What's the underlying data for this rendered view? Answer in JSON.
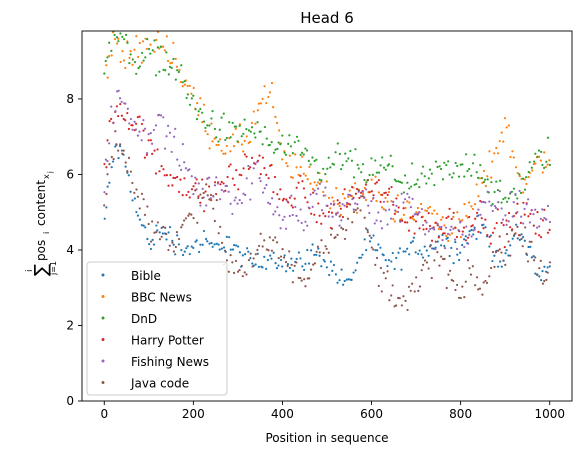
{
  "chart_data": {
    "type": "scatter",
    "title": "Head 6",
    "xlabel": "Position in sequence",
    "ylabel_parts": {
      "sum_top": "i",
      "sum_bottom": "j=1",
      "main": "pos",
      "sub_i": "i",
      "mid": "content",
      "sub_x": "x",
      "sub_j": "j"
    },
    "xlim": [
      -50,
      1050
    ],
    "ylim": [
      0,
      9.8
    ],
    "xticks": [
      0,
      200,
      400,
      600,
      800,
      1000
    ],
    "yticks": [
      0,
      2,
      4,
      6,
      8
    ],
    "grid": false,
    "legend_position": "lower-left",
    "point_step": 4,
    "series": [
      {
        "name": "Bible",
        "color": "#1f77b4",
        "x": [
          0,
          25,
          50,
          75,
          100,
          125,
          150,
          175,
          200,
          225,
          250,
          275,
          300,
          325,
          350,
          375,
          400,
          425,
          450,
          475,
          500,
          525,
          550,
          575,
          600,
          625,
          650,
          675,
          700,
          725,
          750,
          775,
          800,
          825,
          850,
          875,
          900,
          925,
          950,
          975,
          1000
        ],
        "y": [
          4.8,
          6.8,
          6.2,
          4.9,
          4.2,
          4.5,
          4.4,
          4.0,
          4.1,
          4.2,
          4.0,
          4.3,
          3.9,
          3.7,
          3.6,
          3.9,
          3.7,
          3.6,
          3.8,
          3.9,
          3.7,
          3.3,
          3.1,
          3.9,
          4.2,
          3.8,
          3.6,
          3.9,
          4.1,
          4.0,
          4.3,
          4.1,
          4.0,
          4.5,
          4.6,
          4.0,
          3.6,
          4.5,
          4.2,
          3.3,
          3.5
        ],
        "spread": 0.22
      },
      {
        "name": "BBC News",
        "color": "#ff7f0e",
        "x": [
          0,
          25,
          50,
          75,
          100,
          125,
          150,
          175,
          200,
          225,
          250,
          275,
          300,
          325,
          350,
          375,
          400,
          425,
          450,
          475,
          500,
          525,
          550,
          575,
          600,
          625,
          650,
          675,
          700,
          725,
          750,
          775,
          800,
          825,
          850,
          875,
          900,
          925,
          950,
          975,
          1000
        ],
        "y": [
          8.6,
          9.6,
          9.2,
          9.1,
          9.6,
          9.5,
          9.3,
          8.6,
          8.0,
          7.4,
          7.0,
          6.7,
          6.8,
          7.0,
          7.9,
          8.1,
          6.4,
          6.2,
          6.0,
          5.9,
          5.5,
          5.3,
          5.5,
          5.4,
          5.6,
          5.3,
          5.2,
          5.0,
          4.9,
          5.1,
          4.8,
          4.6,
          4.7,
          5.1,
          5.8,
          6.5,
          7.3,
          6.2,
          5.8,
          6.3,
          6.5
        ],
        "spread": 0.3
      },
      {
        "name": "DnD",
        "color": "#2ca02c",
        "x": [
          0,
          25,
          50,
          75,
          100,
          125,
          150,
          175,
          200,
          225,
          250,
          275,
          300,
          325,
          350,
          375,
          400,
          425,
          450,
          475,
          500,
          525,
          550,
          575,
          600,
          625,
          650,
          675,
          700,
          725,
          750,
          775,
          800,
          825,
          850,
          875,
          900,
          925,
          950,
          975,
          1000
        ],
        "y": [
          8.9,
          9.7,
          9.4,
          9.0,
          9.2,
          9.1,
          8.9,
          8.5,
          7.8,
          7.4,
          7.3,
          7.1,
          7.0,
          7.3,
          7.0,
          6.8,
          6.7,
          6.6,
          6.4,
          6.2,
          6.0,
          6.5,
          6.3,
          6.1,
          6.0,
          6.2,
          6.0,
          5.9,
          5.7,
          5.8,
          6.1,
          6.0,
          6.2,
          6.3,
          6.1,
          5.5,
          5.3,
          5.5,
          6.0,
          6.4,
          6.6
        ],
        "spread": 0.3
      },
      {
        "name": "Harry Potter",
        "color": "#d62728",
        "x": [
          0,
          25,
          50,
          75,
          100,
          125,
          150,
          175,
          200,
          225,
          250,
          275,
          300,
          325,
          350,
          375,
          400,
          425,
          450,
          475,
          500,
          525,
          550,
          575,
          600,
          625,
          650,
          675,
          700,
          725,
          750,
          775,
          800,
          825,
          850,
          875,
          900,
          925,
          950,
          975,
          1000
        ],
        "y": [
          6.2,
          7.9,
          7.5,
          7.4,
          6.6,
          6.2,
          6.0,
          5.8,
          5.6,
          5.4,
          5.6,
          5.9,
          6.0,
          6.3,
          6.4,
          5.9,
          5.2,
          5.6,
          5.5,
          5.0,
          4.9,
          5.1,
          5.4,
          5.6,
          5.5,
          5.7,
          5.2,
          4.9,
          4.8,
          4.7,
          4.5,
          4.9,
          4.6,
          4.8,
          4.9,
          4.6,
          4.5,
          4.8,
          5.0,
          4.6,
          4.7
        ],
        "spread": 0.3
      },
      {
        "name": "Fishing News",
        "color": "#9467bd",
        "x": [
          0,
          25,
          50,
          75,
          100,
          125,
          150,
          175,
          200,
          225,
          250,
          275,
          300,
          325,
          350,
          375,
          400,
          425,
          450,
          475,
          500,
          525,
          550,
          575,
          600,
          625,
          650,
          675,
          700,
          725,
          750,
          775,
          800,
          825,
          850,
          875,
          900,
          925,
          950,
          975,
          1000
        ],
        "y": [
          5.9,
          8.1,
          7.6,
          7.2,
          7.0,
          7.5,
          6.8,
          6.3,
          5.8,
          5.4,
          5.8,
          5.6,
          5.3,
          5.8,
          6.0,
          5.4,
          4.8,
          5.2,
          4.6,
          5.5,
          5.3,
          4.9,
          5.1,
          5.5,
          5.0,
          4.8,
          5.1,
          5.4,
          5.0,
          4.7,
          4.3,
          4.6,
          4.4,
          4.5,
          5.0,
          5.3,
          4.9,
          5.2,
          5.1,
          4.7,
          4.9
        ],
        "spread": 0.35
      },
      {
        "name": "Java code",
        "color": "#8c564b",
        "x": [
          0,
          25,
          50,
          75,
          100,
          125,
          150,
          175,
          200,
          225,
          250,
          275,
          300,
          325,
          350,
          375,
          400,
          425,
          450,
          475,
          500,
          525,
          550,
          575,
          600,
          625,
          650,
          675,
          700,
          725,
          750,
          775,
          800,
          825,
          850,
          875,
          900,
          925,
          950,
          975,
          1000
        ],
        "y": [
          5.5,
          7.0,
          6.3,
          5.5,
          4.8,
          4.5,
          4.2,
          4.5,
          5.1,
          5.5,
          4.9,
          3.9,
          3.4,
          3.6,
          4.0,
          4.2,
          3.9,
          3.4,
          3.2,
          4.0,
          4.3,
          4.6,
          4.9,
          5.3,
          4.0,
          3.2,
          2.9,
          2.6,
          3.0,
          3.6,
          3.9,
          3.3,
          2.7,
          3.4,
          2.9,
          3.7,
          4.1,
          4.4,
          4.2,
          3.7,
          3.2
        ],
        "spread": 0.3
      }
    ]
  }
}
